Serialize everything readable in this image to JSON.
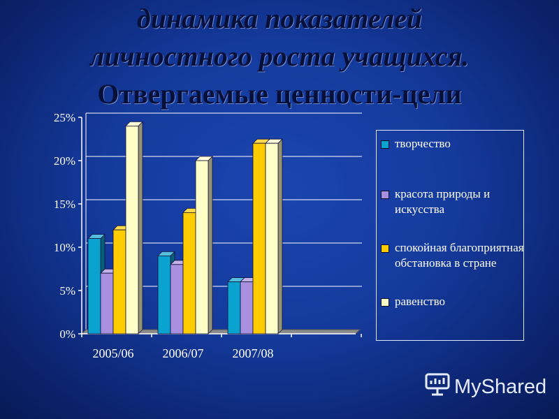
{
  "title": {
    "line1": "динамика показателей",
    "line2": "личностного роста учащихся.",
    "line3": "Отвергаемые ценности-цели"
  },
  "chart_data": {
    "type": "bar",
    "categories": [
      "2005/06",
      "2006/07",
      "2007/08"
    ],
    "series": [
      {
        "name": "творчество",
        "color": "#0aa2cf",
        "values": [
          11,
          9,
          6
        ]
      },
      {
        "name": "красота природы и искусства",
        "color": "#a98fe0",
        "values": [
          7,
          8,
          6
        ]
      },
      {
        "name": "спокойная благоприятная обстановка в стране",
        "color": "#ffcc00",
        "values": [
          12,
          14,
          22
        ]
      },
      {
        "name": "равенство",
        "color": "#ffffc8",
        "values": [
          24,
          20,
          22
        ]
      }
    ],
    "ylim": [
      0,
      25
    ],
    "y_ticks": [
      "0%",
      "5%",
      "10%",
      "15%",
      "20%",
      "25%"
    ],
    "grid": true,
    "legend_position": "right"
  },
  "legend": {
    "items": [
      {
        "label": "творчество",
        "color": "#0aa2cf"
      },
      {
        "label": "красота природы и искусства",
        "color": "#a98fe0"
      },
      {
        "label": "спокойная благоприятная обстановка в стране",
        "color": "#ffcc00"
      },
      {
        "label": "равенство",
        "color": "#ffffc8"
      }
    ]
  },
  "brand": {
    "name": "MyShared",
    "icon": "presentation-board-icon"
  }
}
